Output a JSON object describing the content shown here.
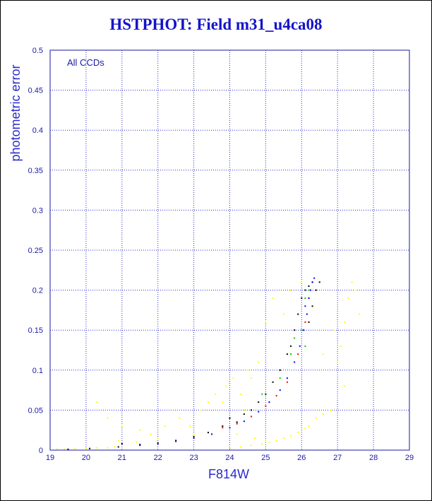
{
  "chart_data": {
    "type": "scatter",
    "title": "HSTPHOT: Field m31_u4ca08",
    "xlabel": "F814W",
    "ylabel": "photometric error",
    "annotation": "All CCDs",
    "xlim": [
      19,
      29
    ],
    "ylim": [
      0,
      0.5
    ],
    "xticks": [
      "19",
      "20",
      "21",
      "22",
      "23",
      "24",
      "25",
      "26",
      "27",
      "28",
      "29"
    ],
    "yticks": [
      "0",
      "0.05",
      "0.1",
      "0.15",
      "0.2",
      "0.25",
      "0.3",
      "0.35",
      "0.4",
      "0.45",
      "0.5"
    ],
    "grid": true,
    "series": [
      {
        "color": "#ffff00",
        "points": [
          [
            19.2,
            0.001
          ],
          [
            19.4,
            0.001
          ],
          [
            19.7,
            0.002
          ],
          [
            20.0,
            0.002
          ],
          [
            20.3,
            0.003
          ],
          [
            20.6,
            0.003
          ],
          [
            20.8,
            0.004
          ],
          [
            20.3,
            0.06
          ],
          [
            20.6,
            0.04
          ],
          [
            21.0,
            0.03
          ],
          [
            21.5,
            0.025
          ],
          [
            21.8,
            0.02
          ],
          [
            22.2,
            0.03
          ],
          [
            22.6,
            0.04
          ],
          [
            22.9,
            0.03
          ],
          [
            23.2,
            0.05
          ],
          [
            23.4,
            0.06
          ],
          [
            23.6,
            0.07
          ],
          [
            23.8,
            0.06
          ],
          [
            23.9,
            0.08
          ],
          [
            24.1,
            0.09
          ],
          [
            24.3,
            0.07
          ],
          [
            24.5,
            0.1
          ],
          [
            24.6,
            0.09
          ],
          [
            24.8,
            0.11
          ],
          [
            24.4,
            0.05
          ],
          [
            23.0,
            0.02
          ],
          [
            22.0,
            0.015
          ],
          [
            21.4,
            0.01
          ],
          [
            24.0,
            0.003
          ],
          [
            24.3,
            0.004
          ],
          [
            24.6,
            0.006
          ],
          [
            24.9,
            0.008
          ],
          [
            25.1,
            0.01
          ],
          [
            25.3,
            0.012
          ],
          [
            25.5,
            0.015
          ],
          [
            25.7,
            0.018
          ],
          [
            25.9,
            0.022
          ],
          [
            26.1,
            0.027
          ],
          [
            26.2,
            0.03
          ],
          [
            26.4,
            0.04
          ],
          [
            26.6,
            0.045
          ],
          [
            26.8,
            0.05
          ],
          [
            27.0,
            0.11
          ],
          [
            27.1,
            0.13
          ],
          [
            27.2,
            0.16
          ],
          [
            27.3,
            0.19
          ],
          [
            27.4,
            0.21
          ],
          [
            27.5,
            0.2
          ],
          [
            27.6,
            0.17
          ],
          [
            27.2,
            0.08
          ],
          [
            26.9,
            0.15
          ],
          [
            26.6,
            0.12
          ],
          [
            25.5,
            0.17
          ],
          [
            25.2,
            0.19
          ],
          [
            25.0,
            0.16
          ],
          [
            25.7,
            0.2
          ],
          [
            26.0,
            0.21
          ],
          [
            24.2,
            0.02
          ],
          [
            24.7,
            0.015
          ],
          [
            25.0,
            0.012
          ],
          [
            23.5,
            0.02
          ],
          [
            20.9,
            0.012
          ]
        ]
      },
      {
        "color": "#000000",
        "points": [
          [
            19.5,
            0.001
          ],
          [
            20.1,
            0.002
          ],
          [
            20.9,
            0.004
          ],
          [
            21.0,
            0.008
          ],
          [
            21.5,
            0.007
          ],
          [
            22.0,
            0.009
          ],
          [
            22.5,
            0.012
          ],
          [
            23.0,
            0.017
          ],
          [
            23.4,
            0.022
          ],
          [
            23.8,
            0.03
          ],
          [
            24.0,
            0.04
          ],
          [
            24.2,
            0.035
          ],
          [
            24.4,
            0.045
          ],
          [
            24.6,
            0.05
          ],
          [
            24.8,
            0.06
          ],
          [
            25.0,
            0.07
          ],
          [
            25.2,
            0.085
          ],
          [
            25.4,
            0.1
          ],
          [
            25.6,
            0.12
          ],
          [
            25.8,
            0.15
          ],
          [
            25.9,
            0.17
          ],
          [
            26.0,
            0.19
          ],
          [
            26.1,
            0.2
          ],
          [
            26.2,
            0.205
          ],
          [
            26.3,
            0.21
          ],
          [
            26.4,
            0.2
          ],
          [
            26.5,
            0.21
          ],
          [
            26.3,
            0.18
          ],
          [
            26.2,
            0.16
          ],
          [
            25.7,
            0.13
          ]
        ]
      },
      {
        "color": "#ff0000",
        "points": [
          [
            23.8,
            0.028
          ],
          [
            24.2,
            0.033
          ],
          [
            24.6,
            0.042
          ],
          [
            25.0,
            0.055
          ],
          [
            25.3,
            0.068
          ],
          [
            25.6,
            0.085
          ],
          [
            25.9,
            0.12
          ],
          [
            26.1,
            0.16
          ],
          [
            26.2,
            0.19
          ],
          [
            26.3,
            0.21
          ]
        ]
      },
      {
        "color": "#00c800",
        "points": [
          [
            24.9,
            0.07
          ],
          [
            25.1,
            0.06
          ],
          [
            25.4,
            0.09
          ],
          [
            25.7,
            0.12
          ],
          [
            25.8,
            0.14
          ],
          [
            26.0,
            0.15
          ],
          [
            26.1,
            0.19
          ],
          [
            26.2,
            0.2
          ],
          [
            26.3,
            0.21
          ],
          [
            26.1,
            0.13
          ]
        ]
      },
      {
        "color": "#0000ff",
        "points": [
          [
            21.5,
            0.006
          ],
          [
            22.0,
            0.008
          ],
          [
            22.5,
            0.011
          ],
          [
            23.0,
            0.015
          ],
          [
            23.5,
            0.02
          ],
          [
            24.0,
            0.028
          ],
          [
            24.4,
            0.036
          ],
          [
            24.8,
            0.048
          ],
          [
            25.1,
            0.06
          ],
          [
            25.4,
            0.075
          ],
          [
            25.6,
            0.09
          ],
          [
            25.8,
            0.11
          ],
          [
            25.95,
            0.13
          ],
          [
            26.05,
            0.15
          ],
          [
            26.15,
            0.17
          ],
          [
            26.2,
            0.19
          ],
          [
            26.25,
            0.2
          ],
          [
            26.3,
            0.21
          ],
          [
            26.35,
            0.215
          ],
          [
            26.1,
            0.18
          ]
        ]
      }
    ]
  }
}
